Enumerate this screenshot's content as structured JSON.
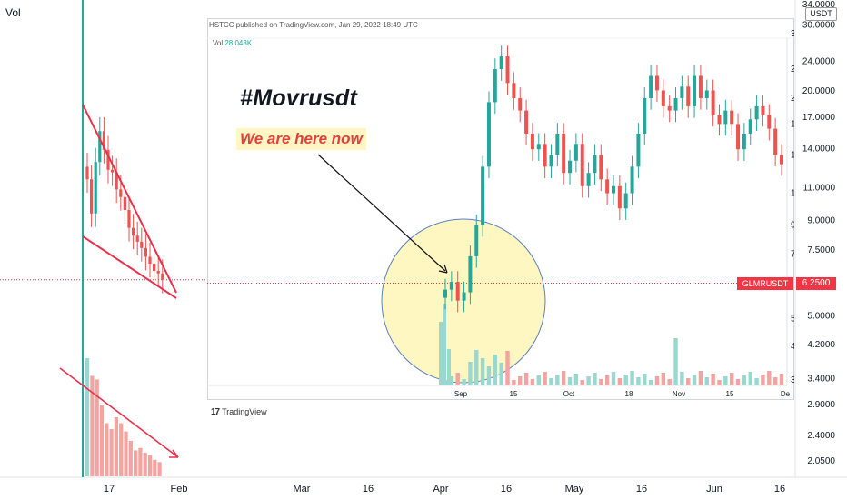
{
  "header": {
    "vol_label": "Vol"
  },
  "annotation": {
    "title": "#Movrusdt",
    "note": "We are here now"
  },
  "inset": {
    "published": "HSTCC published on TradingView.com, Jan 29, 2022 18:49 UTC",
    "vol_label": "Vol",
    "vol_value": "28.043K",
    "brand": "TradingView",
    "symbol": "GLMRUSDT",
    "x_ticks": [
      "Sep",
      "15",
      "Oct",
      "18",
      "Nov",
      "15",
      "De"
    ],
    "y_ticks": [
      "30.0000",
      "24.0000",
      "20.0000",
      "17.0000",
      "14.0000",
      "11.0000",
      "9.0000",
      "7.5000",
      "6.2500",
      "5.0000",
      "4.2000",
      "3.4000"
    ]
  },
  "colors": {
    "up": "#26a69a",
    "down": "#ef5350",
    "pattern": "#e8324b",
    "circle_fill": "#fff7c2",
    "circle_stroke": "#5b7fc4"
  },
  "chart_data": {
    "type": "candlestick",
    "price_axis": {
      "unit": "USDT",
      "ticks": [
        "34.0000",
        "30.0000",
        "24.0000",
        "20.0000",
        "17.0000",
        "14.0000",
        "11.0000",
        "9.0000",
        "7.5000",
        "6.2500",
        "5.0000",
        "4.2000",
        "3.4000",
        "2.9000",
        "2.4000",
        "2.0500"
      ],
      "last_price": "6.2500"
    },
    "time_axis": {
      "ticks": [
        "17",
        "Feb",
        "Mar",
        "16",
        "Apr",
        "16",
        "May",
        "16",
        "Jun",
        "16"
      ]
    },
    "main_candles_close": [
      11.6,
      9.4,
      12.9,
      15.6,
      13.9,
      12.3,
      12.1,
      10.9,
      10.4,
      9.6,
      8.6,
      8.2,
      7.9,
      7.6,
      7.2,
      6.9,
      6.6,
      6.5,
      6.25
    ],
    "main_volume_relative": [
      1.0,
      0.85,
      0.82,
      0.6,
      0.45,
      0.4,
      0.5,
      0.45,
      0.38,
      0.3,
      0.22,
      0.24,
      0.2,
      0.18,
      0.14,
      0.12
    ],
    "inset_candles_close": [
      6.0,
      6.3,
      5.6,
      5.9,
      7.4,
      9.0,
      13.0,
      19.5,
      24.0,
      26.0,
      22.0,
      20.0,
      18.5,
      16.0,
      14.5,
      15.0,
      13.0,
      14.0,
      16.0,
      12.5,
      13.5,
      15.0,
      11.5,
      12.5,
      14.0,
      12.0,
      11.0,
      11.5,
      10.0,
      11.0,
      13.0,
      16.0,
      20.0,
      23.0,
      21.0,
      19.0,
      18.5,
      20.0,
      21.5,
      19.0,
      23.0,
      20.0,
      21.0,
      18.0,
      17.0,
      18.5,
      17.0,
      14.5,
      16.0,
      17.5,
      19.0,
      18.0,
      16.5,
      14.0,
      13.2
    ],
    "patterns": [
      {
        "name": "falling wedge",
        "on": "main price pane"
      },
      {
        "name": "descending volume trendline",
        "on": "main volume pane"
      }
    ]
  }
}
